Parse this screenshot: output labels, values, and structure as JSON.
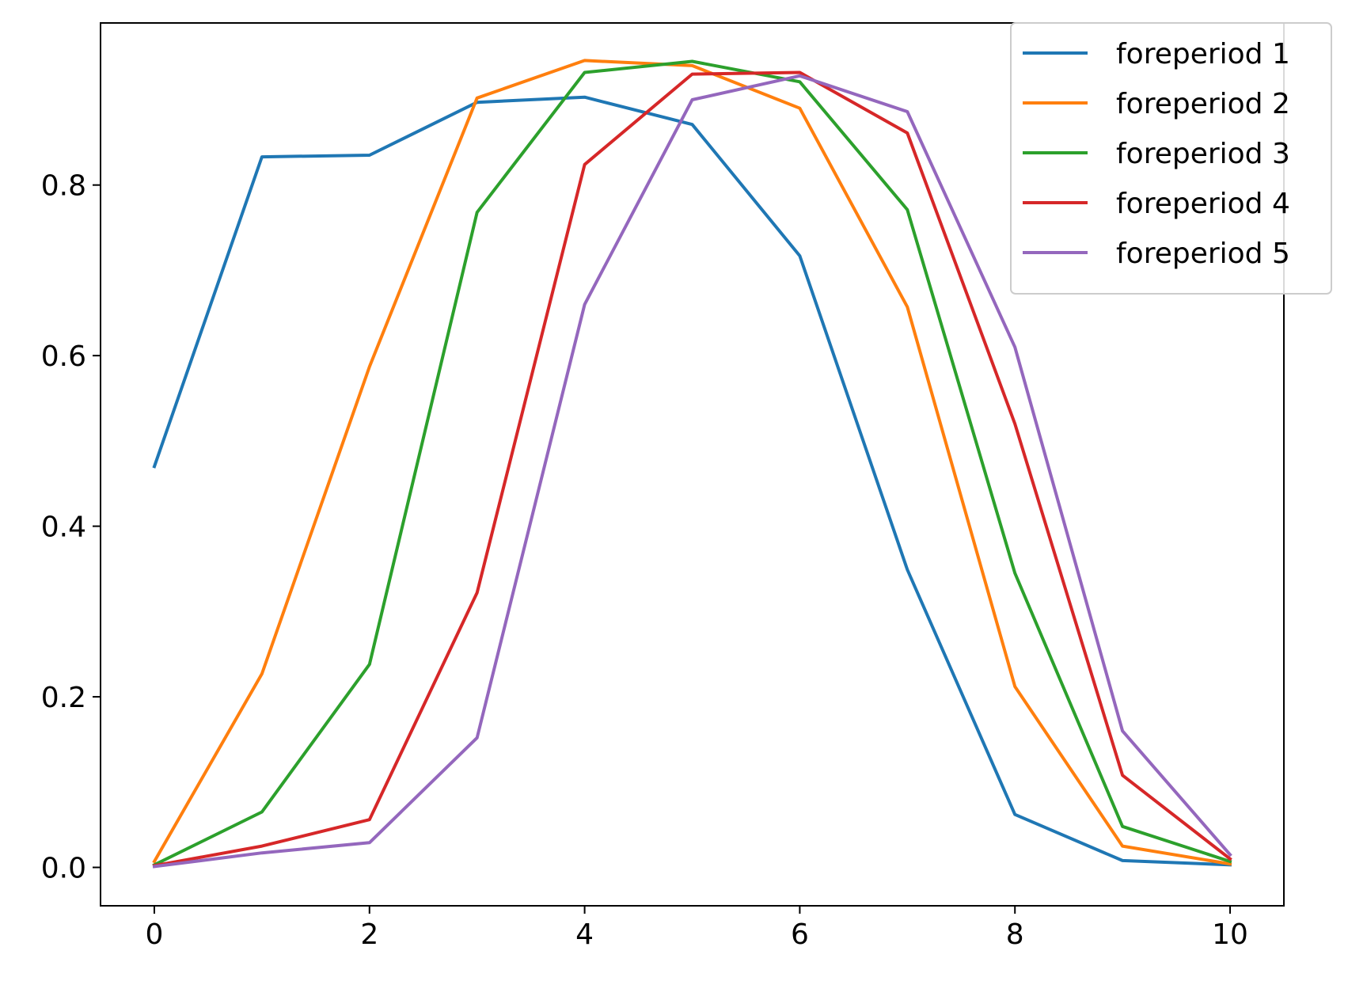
{
  "chart_data": {
    "type": "line",
    "title": "",
    "xlabel": "",
    "ylabel": "",
    "x": [
      0,
      1,
      2,
      3,
      4,
      5,
      6,
      7,
      8,
      9,
      10
    ],
    "xlim": [
      -0.5,
      10.5
    ],
    "ylim": [
      -0.045,
      0.99
    ],
    "xticks": [
      0,
      2,
      4,
      6,
      8,
      10
    ],
    "xtick_labels": [
      "0",
      "2",
      "4",
      "6",
      "8",
      "10"
    ],
    "yticks": [
      0.0,
      0.2,
      0.4,
      0.6,
      0.8
    ],
    "ytick_labels": [
      "0.0",
      "0.2",
      "0.4",
      "0.6",
      "0.8"
    ],
    "grid": false,
    "legend_position": "top-right",
    "series": [
      {
        "name": "foreperiod 1",
        "color": "#1f77b4",
        "values": [
          0.47,
          0.833,
          0.835,
          0.897,
          0.903,
          0.871,
          0.717,
          0.349,
          0.062,
          0.008,
          0.003
        ]
      },
      {
        "name": "foreperiod 2",
        "color": "#ff7f0e",
        "values": [
          0.007,
          0.227,
          0.587,
          0.902,
          0.946,
          0.94,
          0.89,
          0.657,
          0.212,
          0.025,
          0.004
        ]
      },
      {
        "name": "foreperiod 3",
        "color": "#2ca02c",
        "values": [
          0.003,
          0.065,
          0.238,
          0.768,
          0.932,
          0.945,
          0.921,
          0.771,
          0.345,
          0.048,
          0.007
        ]
      },
      {
        "name": "foreperiod 4",
        "color": "#d62728",
        "values": [
          0.002,
          0.025,
          0.056,
          0.322,
          0.824,
          0.93,
          0.932,
          0.861,
          0.52,
          0.108,
          0.01
        ]
      },
      {
        "name": "foreperiod 5",
        "color": "#9467bd",
        "values": [
          0.001,
          0.017,
          0.029,
          0.152,
          0.66,
          0.9,
          0.928,
          0.886,
          0.61,
          0.16,
          0.015
        ]
      }
    ]
  }
}
